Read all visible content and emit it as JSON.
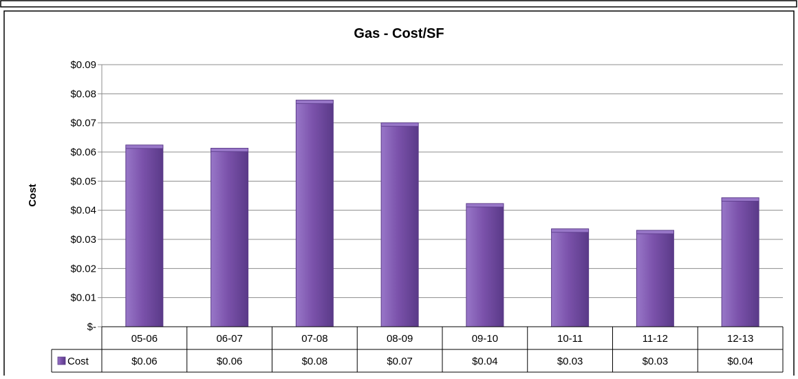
{
  "chart_data": {
    "type": "bar",
    "title": "Gas - Cost/SF",
    "xlabel": "",
    "ylabel": "Cost",
    "categories": [
      "05-06",
      "06-07",
      "07-08",
      "08-09",
      "09-10",
      "10-11",
      "11-12",
      "12-13"
    ],
    "series": [
      {
        "name": "Cost",
        "values": [
          0.0624,
          0.0613,
          0.0778,
          0.07,
          0.0423,
          0.0336,
          0.0331,
          0.0443
        ],
        "table_labels": [
          "$0.06",
          "$0.06",
          "$0.08",
          "$0.07",
          "$0.04",
          "$0.03",
          "$0.03",
          "$0.04"
        ],
        "color": "#7b52ab"
      }
    ],
    "ylim": [
      0,
      0.09
    ],
    "ytick_values": [
      0,
      0.01,
      0.02,
      0.03,
      0.04,
      0.05,
      0.06,
      0.07,
      0.08,
      0.09
    ],
    "ytick_labels": [
      "$-",
      "$0.01",
      "$0.02",
      "$0.03",
      "$0.04",
      "$0.05",
      "$0.06",
      "$0.07",
      "$0.08",
      "$0.09"
    ],
    "grid": true,
    "legend": "data-table",
    "colors": {
      "bar_light": "#9877c8",
      "bar_mid": "#7b52ab",
      "bar_dark": "#5a3a88",
      "grid": "#8c8c8c",
      "border": "#000000"
    }
  }
}
